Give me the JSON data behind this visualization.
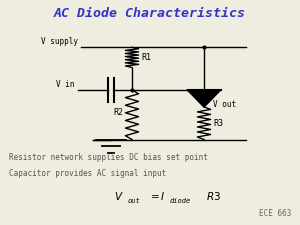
{
  "title": "AC Diode Characteristics",
  "title_color": "#3333cc",
  "title_fontsize": 9.5,
  "bg_color": "#eeede0",
  "text_line1": "Resistor network supplies DC bias set point",
  "text_line2": "Capacitor provides AC signal input",
  "watermark": "ECE 663",
  "label_vsupply": "V supply",
  "label_vin": "V in",
  "label_vout": "V out",
  "label_r1": "R1",
  "label_r2": "R2",
  "label_r3": "R3"
}
